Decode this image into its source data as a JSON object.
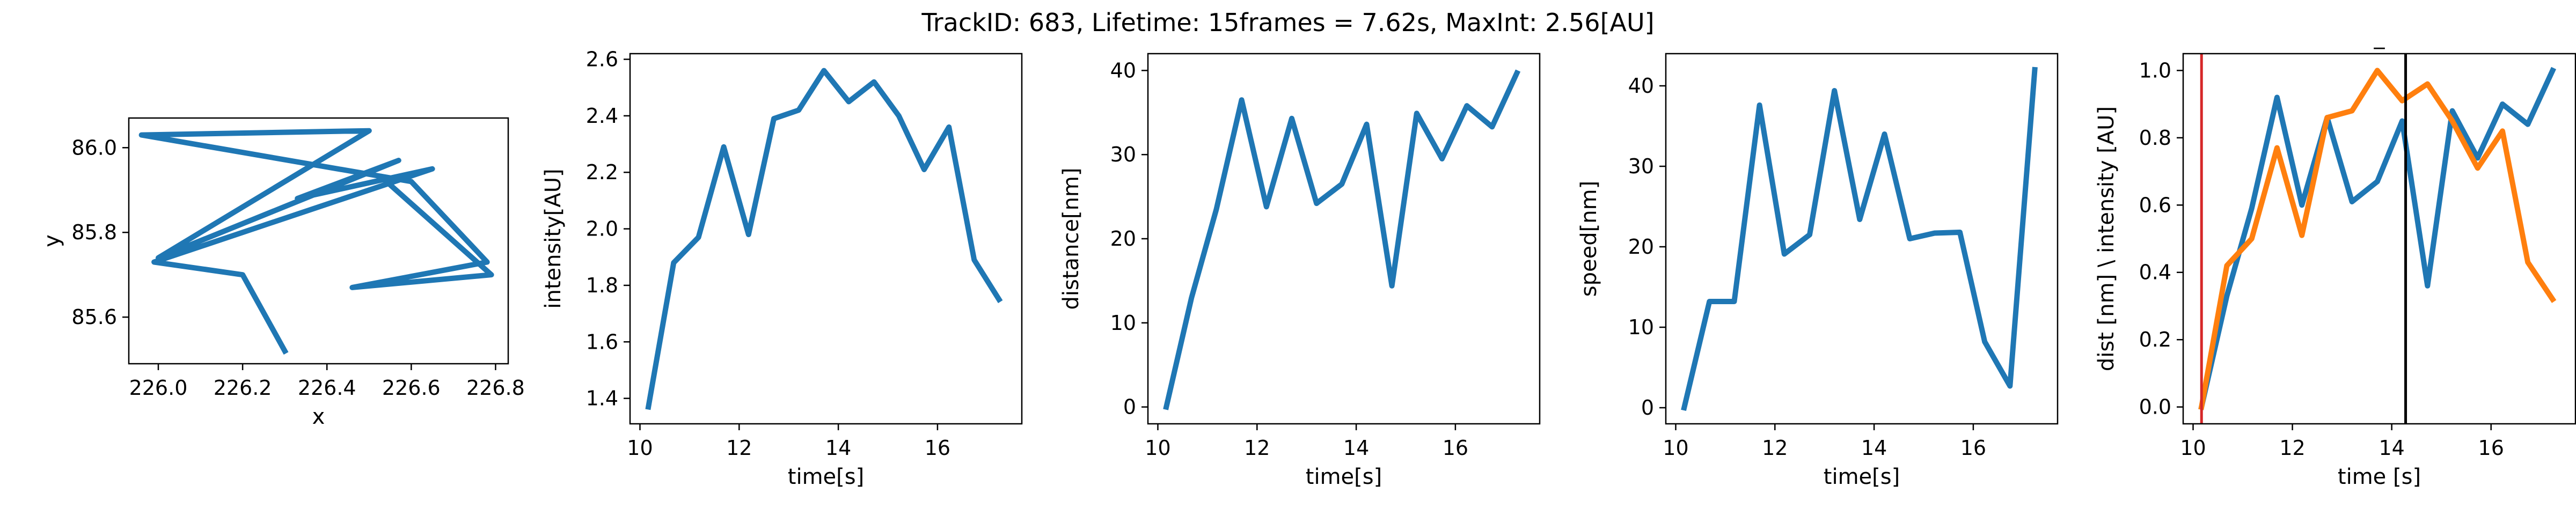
{
  "figure": {
    "title": "TrackID: 683, Lifetime: 15frames = 7.62s, MaxInt: 2.56[AU]"
  },
  "chart_data": [
    {
      "type": "line",
      "xlabel": "x",
      "ylabel": "y",
      "xlim": [
        225.93,
        226.83
      ],
      "ylim": [
        85.49,
        86.07
      ],
      "xticks": [
        226.0,
        226.2,
        226.4,
        226.6,
        226.8
      ],
      "xtick_labels": [
        "226.0",
        "226.2",
        "226.4",
        "226.6",
        "226.8"
      ],
      "yticks": [
        85.6,
        85.8,
        86.0
      ],
      "ytick_labels": [
        "85.6",
        "85.8",
        "86.0"
      ],
      "series": [
        {
          "color": "#1f77b4",
          "x": [
            226.3,
            226.2,
            225.99,
            226.65,
            226.33,
            226.57,
            226.0,
            226.5,
            225.96,
            226.6,
            226.78,
            226.46,
            226.79,
            226.53
          ],
          "y": [
            85.52,
            85.7,
            85.73,
            85.95,
            85.88,
            85.97,
            85.74,
            86.04,
            86.03,
            85.92,
            85.73,
            85.67,
            85.7,
            85.93
          ]
        }
      ]
    },
    {
      "type": "line",
      "xlabel": "time[s]",
      "ylabel": "intensity[AU]",
      "xlim": [
        9.8,
        17.7
      ],
      "ylim": [
        1.31,
        2.62
      ],
      "xticks": [
        10,
        12,
        14,
        16
      ],
      "xtick_labels": [
        "10",
        "12",
        "14",
        "16"
      ],
      "yticks": [
        1.4,
        1.6,
        1.8,
        2.0,
        2.2,
        2.4,
        2.6
      ],
      "ytick_labels": [
        "1.4",
        "1.6",
        "1.8",
        "2.0",
        "2.2",
        "2.4",
        "2.6"
      ],
      "series": [
        {
          "color": "#1f77b4",
          "x": [
            10.17,
            10.68,
            11.18,
            11.69,
            12.19,
            12.7,
            13.2,
            13.71,
            14.21,
            14.72,
            15.22,
            15.73,
            16.23,
            16.74,
            17.24
          ],
          "y": [
            1.37,
            1.88,
            1.97,
            2.29,
            1.98,
            2.39,
            2.42,
            2.56,
            2.45,
            2.52,
            2.4,
            2.21,
            2.36,
            1.89,
            1.75
          ]
        }
      ]
    },
    {
      "type": "line",
      "xlabel": "time[s]",
      "ylabel": "distance[nm]",
      "xlim": [
        9.8,
        17.7
      ],
      "ylim": [
        -2,
        42
      ],
      "xticks": [
        10,
        12,
        14,
        16
      ],
      "xtick_labels": [
        "10",
        "12",
        "14",
        "16"
      ],
      "yticks": [
        0,
        10,
        20,
        30,
        40
      ],
      "ytick_labels": [
        "0",
        "10",
        "20",
        "30",
        "40"
      ],
      "series": [
        {
          "color": "#1f77b4",
          "x": [
            10.17,
            10.68,
            11.18,
            11.69,
            12.19,
            12.7,
            13.2,
            13.71,
            14.21,
            14.72,
            15.22,
            15.73,
            16.23,
            16.74,
            17.24
          ],
          "y": [
            0,
            13,
            23.5,
            36.5,
            23.8,
            34.3,
            24.2,
            26.5,
            33.6,
            14.4,
            34.9,
            29.5,
            35.8,
            33.3,
            39.7
          ]
        }
      ]
    },
    {
      "type": "line",
      "xlabel": "time[s]",
      "ylabel": "speed[nm]",
      "xlim": [
        9.8,
        17.7
      ],
      "ylim": [
        -2,
        44
      ],
      "xticks": [
        10,
        12,
        14,
        16
      ],
      "xtick_labels": [
        "10",
        "12",
        "14",
        "16"
      ],
      "yticks": [
        0,
        10,
        20,
        30,
        40
      ],
      "ytick_labels": [
        "0",
        "10",
        "20",
        "30",
        "40"
      ],
      "series": [
        {
          "color": "#1f77b4",
          "x": [
            10.17,
            10.68,
            11.18,
            11.69,
            12.19,
            12.7,
            13.2,
            13.71,
            14.21,
            14.72,
            15.22,
            15.73,
            16.23,
            16.74,
            17.24
          ],
          "y": [
            0,
            13.2,
            13.2,
            37.6,
            19.1,
            21.5,
            39.4,
            23.4,
            34.0,
            21.0,
            21.7,
            21.8,
            8.2,
            2.7,
            42.0
          ]
        }
      ]
    },
    {
      "type": "line",
      "title": "_",
      "xlabel": "time [s]",
      "ylabel": "dist [nm] \\ intensity [AU]",
      "xlim": [
        9.8,
        17.7
      ],
      "ylim": [
        -0.05,
        1.05
      ],
      "xticks": [
        10,
        12,
        14,
        16
      ],
      "xtick_labels": [
        "10",
        "12",
        "14",
        "16"
      ],
      "yticks": [
        0.0,
        0.2,
        0.4,
        0.6,
        0.8,
        1.0
      ],
      "ytick_labels": [
        "0.0",
        "0.2",
        "0.4",
        "0.6",
        "0.8",
        "1.0"
      ],
      "vlines": [
        {
          "x": 10.17,
          "color": "#d62728"
        },
        {
          "x": 14.28,
          "color": "#000000"
        }
      ],
      "series": [
        {
          "color": "#1f77b4",
          "x": [
            10.17,
            10.68,
            11.18,
            11.69,
            12.19,
            12.7,
            13.2,
            13.71,
            14.21,
            14.72,
            15.22,
            15.73,
            16.23,
            16.74,
            17.24
          ],
          "y": [
            0,
            0.33,
            0.59,
            0.92,
            0.6,
            0.86,
            0.61,
            0.67,
            0.85,
            0.36,
            0.88,
            0.74,
            0.9,
            0.84,
            1.0
          ]
        },
        {
          "color": "#ff7f0e",
          "x": [
            10.17,
            10.68,
            11.18,
            11.69,
            12.19,
            12.7,
            13.2,
            13.71,
            14.21,
            14.72,
            15.22,
            15.73,
            16.23,
            16.74,
            17.24
          ],
          "y": [
            0,
            0.42,
            0.5,
            0.77,
            0.51,
            0.86,
            0.88,
            1.0,
            0.91,
            0.96,
            0.85,
            0.71,
            0.82,
            0.43,
            0.32
          ]
        }
      ]
    }
  ]
}
